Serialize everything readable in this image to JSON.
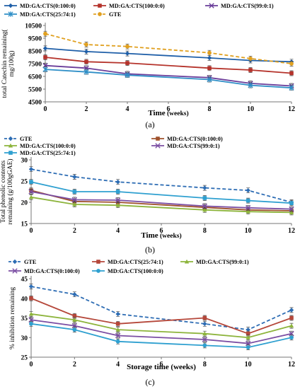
{
  "chart_data": [
    {
      "type": "line",
      "caption": "(a)",
      "title": "",
      "xlabel": "Time",
      "xlabel_suffix": "(weeks)",
      "ylabel": "total Catechin remaining(mg/100g)",
      "xlim": [
        0,
        12
      ],
      "ylim": [
        4500,
        10500
      ],
      "xticks": [
        0,
        2,
        4,
        6,
        8,
        10,
        12
      ],
      "yticks": [
        4500,
        5500,
        6500,
        7500,
        8500,
        9500,
        10500
      ],
      "grid": false,
      "legend_position": "top",
      "x": [
        0,
        2,
        4,
        8,
        10,
        12
      ],
      "series": [
        {
          "name": "MD:GA:CTS(0:100:0)",
          "color": "#1f5fa8",
          "marker": "diamond",
          "dash": false,
          "values": [
            8700,
            8450,
            8300,
            7950,
            7750,
            7650
          ]
        },
        {
          "name": "MD:GA:CTS(100:0:0)",
          "color": "#b5332b",
          "marker": "square",
          "dash": false,
          "values": [
            8000,
            7650,
            7550,
            7150,
            7000,
            6750
          ]
        },
        {
          "name": "MD:GA:CTS(99:0:1)",
          "color": "#6a3d9a",
          "marker": "x",
          "dash": false,
          "values": [
            7350,
            7150,
            6700,
            6400,
            5950,
            5750
          ]
        },
        {
          "name": "MD:GA:CTS(25:74:1)",
          "color": "#2f8fc7",
          "marker": "asterisk",
          "dash": false,
          "values": [
            7050,
            6850,
            6600,
            6250,
            5800,
            5600
          ]
        },
        {
          "name": "GTE",
          "color": "#e0a020",
          "marker": "circle",
          "dash": true,
          "values": [
            9850,
            9000,
            8850,
            8350,
            7900,
            7500
          ]
        }
      ]
    },
    {
      "type": "line",
      "caption": "(b)",
      "title": "",
      "xlabel": "Time",
      "xlabel_suffix": "(weeks)",
      "ylabel": "Total phenolic contents remaining (g/100gGAE)",
      "xlim": [
        0,
        12
      ],
      "ylim": [
        15,
        30
      ],
      "xticks": [
        0,
        2,
        4,
        6,
        8,
        10,
        12
      ],
      "yticks": [
        15,
        20,
        25,
        30
      ],
      "grid": false,
      "legend_position": "top",
      "x": [
        0,
        2,
        4,
        8,
        10,
        12
      ],
      "series": [
        {
          "name": "GTE",
          "color": "#2e6db4",
          "marker": "diamond",
          "dash": true,
          "values": [
            27.8,
            26.0,
            24.8,
            23.4,
            22.8,
            20.0
          ]
        },
        {
          "name": "MD:GA:CTS(0:100:0)",
          "color": "#a0522d",
          "marker": "square",
          "dash": false,
          "values": [
            22.8,
            20.2,
            20.0,
            18.8,
            18.2,
            18.0
          ]
        },
        {
          "name": "MD:GA:CTS(100:0:0)",
          "color": "#8db43c",
          "marker": "triangle",
          "dash": false,
          "values": [
            21.2,
            19.5,
            19.3,
            18.2,
            17.8,
            17.6
          ]
        },
        {
          "name": "MD:GA:CTS(99:0:1)",
          "color": "#7b4ea3",
          "marker": "x",
          "dash": false,
          "values": [
            22.5,
            20.6,
            20.5,
            19.1,
            18.7,
            18.4
          ]
        },
        {
          "name": "MD:GA:CTS(25:74:1)",
          "color": "#2fa0d0",
          "marker": "square",
          "dash": false,
          "values": [
            24.8,
            22.5,
            22.5,
            21.0,
            20.4,
            19.8
          ]
        }
      ]
    },
    {
      "type": "line",
      "caption": "(c)",
      "title": "",
      "xlabel": "Storage time (weeks)",
      "xlabel_suffix": "",
      "ylabel": "% inhibition remaining",
      "xlim": [
        0,
        12
      ],
      "ylim": [
        25,
        45
      ],
      "xticks": [
        0,
        2,
        4,
        6,
        8,
        10,
        12
      ],
      "yticks": [
        25,
        30,
        35,
        40,
        45
      ],
      "grid": false,
      "legend_position": "top",
      "x": [
        0,
        2,
        4,
        8,
        10,
        12
      ],
      "series": [
        {
          "name": "GTE",
          "color": "#2e6db4",
          "marker": "diamond",
          "dash": true,
          "values": [
            43.0,
            41.0,
            36.0,
            33.5,
            32.0,
            37.0
          ]
        },
        {
          "name": "MD:GA:CTS(25:74:1)",
          "color": "#b5473a",
          "marker": "square",
          "dash": false,
          "values": [
            40.0,
            35.5,
            33.5,
            35.0,
            31.0,
            35.0
          ]
        },
        {
          "name": "MD:GA:CTS(99:0:1)",
          "color": "#8db43c",
          "marker": "triangle",
          "dash": false,
          "values": [
            36.0,
            34.5,
            32.0,
            31.0,
            30.0,
            33.0
          ]
        },
        {
          "name": "MD:GA:CTS(0:100:0)",
          "color": "#7b4ea3",
          "marker": "x",
          "dash": false,
          "values": [
            34.5,
            33.0,
            30.5,
            29.5,
            28.5,
            31.0
          ]
        },
        {
          "name": "MD:GA:CTS(100:0:0)",
          "color": "#2fa0d0",
          "marker": "circle",
          "dash": false,
          "values": [
            33.5,
            32.0,
            29.0,
            28.0,
            27.5,
            30.0
          ]
        }
      ]
    }
  ]
}
